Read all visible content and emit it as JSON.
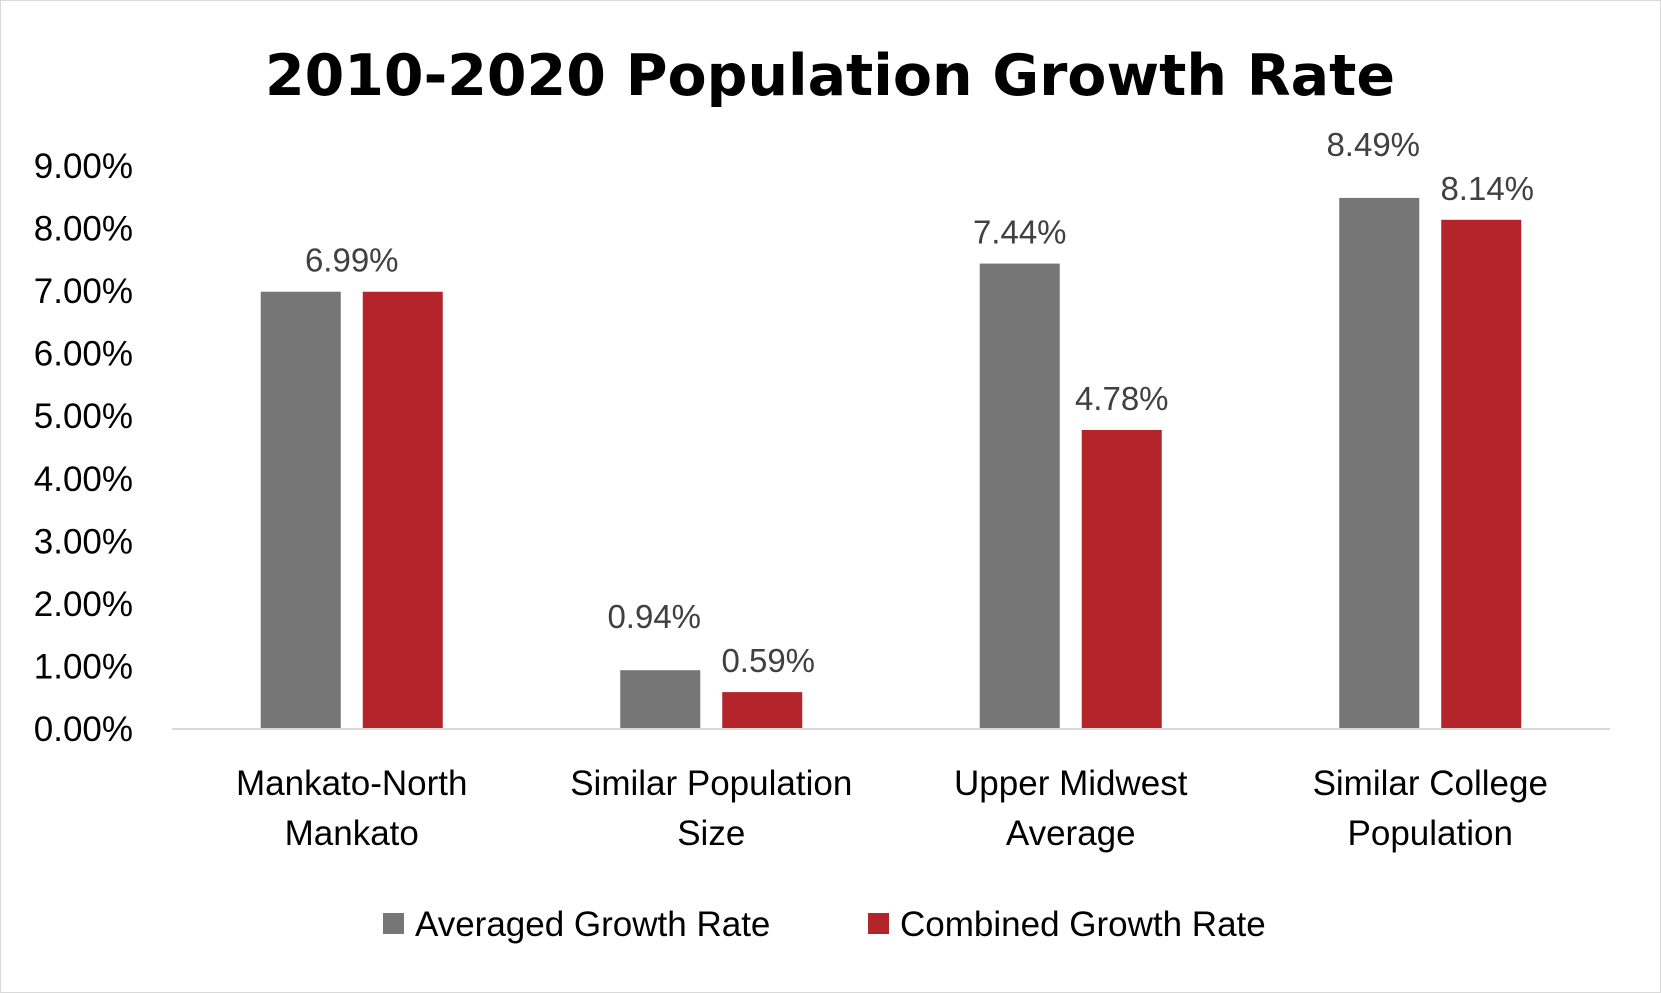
{
  "chart_data": {
    "type": "bar",
    "title": "2010-2020 Population Growth Rate",
    "categories": [
      [
        "Mankato-North",
        "Mankato"
      ],
      [
        "Similar Population",
        "Size"
      ],
      [
        "Upper Midwest",
        "Average"
      ],
      [
        "Similar College",
        "Population"
      ]
    ],
    "series": [
      {
        "name": "Averaged Growth Rate",
        "color": "#767676",
        "values": [
          6.99,
          0.94,
          7.44,
          8.49
        ],
        "labels": [
          "6.99%",
          "0.94%",
          "7.44%",
          "8.49%"
        ]
      },
      {
        "name": "Combined Growth Rate",
        "color": "#b3242b",
        "values": [
          6.99,
          0.59,
          4.78,
          8.14
        ],
        "labels": [
          null,
          "0.59%",
          "4.78%",
          "8.14%"
        ]
      }
    ],
    "yticks": [
      "0.00%",
      "1.00%",
      "2.00%",
      "3.00%",
      "4.00%",
      "5.00%",
      "6.00%",
      "7.00%",
      "8.00%",
      "9.00%"
    ],
    "ylim": [
      0,
      9
    ],
    "xlabel": "",
    "ylabel": "",
    "grid": false,
    "legend_position": "bottom",
    "axis_color": "#d9d9d9"
  }
}
